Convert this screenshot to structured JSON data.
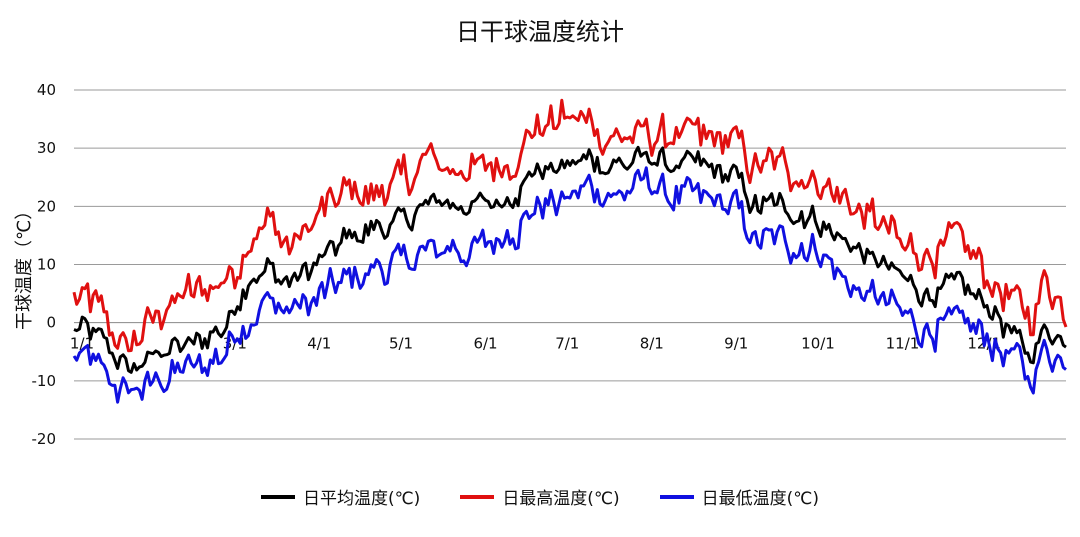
{
  "chart_data": {
    "type": "line",
    "title": "日干球温度统计",
    "ylabel": "干球温度（℃）",
    "xlabel": "",
    "ylim": [
      -20,
      40
    ],
    "yticks": [
      -20,
      -10,
      0,
      10,
      20,
      30,
      40
    ],
    "x_day_range": [
      1,
      365
    ],
    "grid": true,
    "legend_position": "bottom",
    "months": [
      {
        "label": "1/1",
        "day": 1
      },
      {
        "label": "3/1",
        "day": 60
      },
      {
        "label": "4/1",
        "day": 91
      },
      {
        "label": "5/1",
        "day": 121
      },
      {
        "label": "6/1",
        "day": 152
      },
      {
        "label": "7/1",
        "day": 182
      },
      {
        "label": "8/1",
        "day": 213
      },
      {
        "label": "9/1",
        "day": 244
      },
      {
        "label": "10/1",
        "day": 274
      },
      {
        "label": "11/1",
        "day": 305
      },
      {
        "label": "12/1",
        "day": 335
      }
    ],
    "series": [
      {
        "name": "日平均温度(℃)",
        "color": "#000000",
        "key": "avg"
      },
      {
        "name": "日最高温度(℃)",
        "color": "#e01010",
        "key": "max"
      },
      {
        "name": "日最低温度(℃)",
        "color": "#1010e0",
        "key": "min"
      }
    ],
    "avg_keypoints": [
      [
        1,
        -1
      ],
      [
        8,
        -2
      ],
      [
        15,
        -5
      ],
      [
        20,
        -8
      ],
      [
        28,
        -7
      ],
      [
        35,
        -4
      ],
      [
        45,
        -4
      ],
      [
        55,
        -1
      ],
      [
        60,
        3
      ],
      [
        65,
        8
      ],
      [
        72,
        9
      ],
      [
        80,
        7
      ],
      [
        90,
        10
      ],
      [
        100,
        14
      ],
      [
        110,
        16
      ],
      [
        121,
        17
      ],
      [
        130,
        20
      ],
      [
        140,
        21
      ],
      [
        152,
        20
      ],
      [
        160,
        22
      ],
      [
        170,
        26
      ],
      [
        180,
        27
      ],
      [
        190,
        28
      ],
      [
        200,
        27
      ],
      [
        213,
        28
      ],
      [
        220,
        27
      ],
      [
        230,
        27
      ],
      [
        244,
        25
      ],
      [
        250,
        20
      ],
      [
        260,
        20
      ],
      [
        274,
        18
      ],
      [
        280,
        15
      ],
      [
        290,
        12
      ],
      [
        300,
        9
      ],
      [
        305,
        7
      ],
      [
        315,
        5
      ],
      [
        325,
        6
      ],
      [
        335,
        4
      ],
      [
        345,
        -2
      ],
      [
        352,
        -6
      ],
      [
        358,
        -1
      ],
      [
        365,
        -3
      ]
    ],
    "max_keypoints": [
      [
        1,
        5
      ],
      [
        8,
        3
      ],
      [
        15,
        -1
      ],
      [
        20,
        -5
      ],
      [
        28,
        0
      ],
      [
        35,
        3
      ],
      [
        45,
        5
      ],
      [
        55,
        7
      ],
      [
        60,
        9
      ],
      [
        65,
        15
      ],
      [
        72,
        17
      ],
      [
        80,
        13
      ],
      [
        90,
        18
      ],
      [
        100,
        22
      ],
      [
        110,
        22
      ],
      [
        121,
        24
      ],
      [
        130,
        28
      ],
      [
        140,
        27
      ],
      [
        152,
        26
      ],
      [
        160,
        28
      ],
      [
        170,
        33
      ],
      [
        180,
        35
      ],
      [
        190,
        34
      ],
      [
        200,
        32
      ],
      [
        213,
        32
      ],
      [
        220,
        32
      ],
      [
        230,
        31
      ],
      [
        244,
        31
      ],
      [
        250,
        26
      ],
      [
        260,
        27
      ],
      [
        274,
        25
      ],
      [
        280,
        22
      ],
      [
        290,
        19
      ],
      [
        300,
        15
      ],
      [
        305,
        13
      ],
      [
        315,
        12
      ],
      [
        325,
        13
      ],
      [
        335,
        9
      ],
      [
        345,
        4
      ],
      [
        352,
        1
      ],
      [
        358,
        8
      ],
      [
        365,
        2
      ]
    ],
    "min_keypoints": [
      [
        1,
        -6
      ],
      [
        8,
        -7
      ],
      [
        15,
        -10
      ],
      [
        20,
        -12
      ],
      [
        28,
        -11
      ],
      [
        35,
        -9
      ],
      [
        45,
        -8
      ],
      [
        55,
        -5
      ],
      [
        60,
        -2
      ],
      [
        65,
        1
      ],
      [
        72,
        4
      ],
      [
        80,
        2
      ],
      [
        90,
        4
      ],
      [
        100,
        7
      ],
      [
        110,
        9
      ],
      [
        121,
        10
      ],
      [
        130,
        12
      ],
      [
        140,
        13
      ],
      [
        152,
        13
      ],
      [
        160,
        16
      ],
      [
        170,
        19
      ],
      [
        180,
        21
      ],
      [
        190,
        23
      ],
      [
        200,
        22
      ],
      [
        213,
        24
      ],
      [
        220,
        22
      ],
      [
        230,
        21
      ],
      [
        244,
        20
      ],
      [
        250,
        14
      ],
      [
        260,
        14
      ],
      [
        274,
        13
      ],
      [
        280,
        9
      ],
      [
        290,
        5
      ],
      [
        300,
        3
      ],
      [
        305,
        1
      ],
      [
        315,
        -1
      ],
      [
        325,
        0
      ],
      [
        335,
        -2
      ],
      [
        345,
        -6
      ],
      [
        352,
        -10
      ],
      [
        358,
        -4
      ],
      [
        365,
        -7
      ]
    ],
    "noise_amplitude": {
      "avg": 1.6,
      "max": 2.4,
      "min": 2.0
    }
  }
}
